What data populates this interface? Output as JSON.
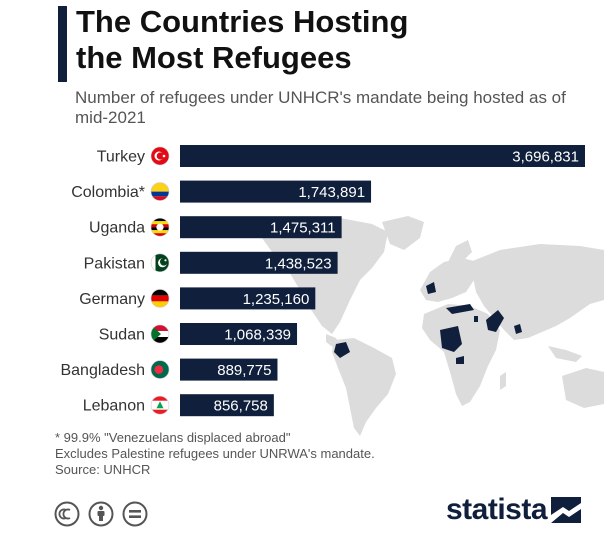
{
  "title_line1": "The Countries Hosting",
  "title_line2": "the Most Refugees",
  "subtitle": "Number of refugees under UNHCR's mandate being hosted as of mid-2021",
  "footnotes": {
    "note1": "* 99.9% \"Venezuelans displaced abroad\"",
    "note2": "Excludes Palestine refugees under UNRWA's mandate.",
    "source": "Source: UNHCR"
  },
  "brand": {
    "logo_text": "statista",
    "bar_color": "#0f1f3c",
    "map_color": "#dcdcdc",
    "highlight_color": "#0f1f3c"
  },
  "chart_data": {
    "type": "bar",
    "orientation": "horizontal",
    "categories": [
      "Turkey",
      "Colombia*",
      "Uganda",
      "Pakistan",
      "Germany",
      "Sudan",
      "Bangladesh",
      "Lebanon"
    ],
    "values": [
      3696831,
      1743891,
      1475311,
      1438523,
      1235160,
      1068339,
      889775,
      856758
    ],
    "labels": [
      "3,696,831",
      "1,743,891",
      "1,475,311",
      "1,438,523",
      "1,235,160",
      "1,068,339",
      "889,775",
      "856,758"
    ],
    "flags": [
      "turkey-flag",
      "colombia-flag",
      "uganda-flag",
      "pakistan-flag",
      "germany-flag",
      "sudan-flag",
      "bangladesh-flag",
      "lebanon-flag"
    ],
    "xlim": [
      0,
      3696831
    ],
    "title": "The Countries Hosting the Most Refugees",
    "xlabel": "",
    "ylabel": ""
  }
}
